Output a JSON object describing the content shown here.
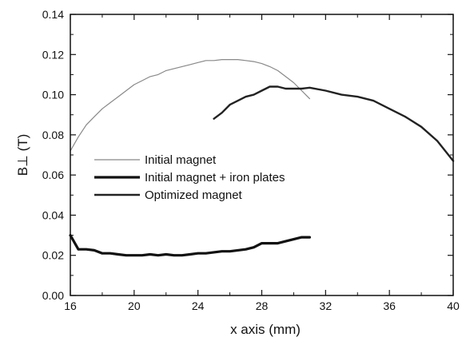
{
  "chart_data": {
    "type": "line",
    "xlabel": "x axis (mm)",
    "ylabel": "B⊥ (T)",
    "xlim": [
      16,
      40
    ],
    "ylim": [
      0.0,
      0.14
    ],
    "x_ticks": [
      16,
      20,
      24,
      28,
      32,
      36,
      40
    ],
    "y_ticks": [
      0.0,
      0.02,
      0.04,
      0.06,
      0.08,
      0.1,
      0.12,
      0.14
    ],
    "y_tick_labels": [
      "0.00",
      "0.02",
      "0.04",
      "0.06",
      "0.08",
      "0.10",
      "0.12",
      "0.14"
    ],
    "grid": false,
    "legend_position": "center-left",
    "series": [
      {
        "name": "Initial magnet",
        "color": "#888888",
        "style": "thin",
        "x": [
          16.0,
          16.5,
          17.0,
          17.5,
          18.0,
          18.5,
          19.0,
          19.5,
          20.0,
          20.5,
          21.0,
          21.5,
          22.0,
          22.5,
          23.0,
          23.5,
          24.0,
          24.5,
          25.0,
          25.5,
          26.0,
          26.5,
          27.0,
          27.5,
          28.0,
          28.5,
          29.0,
          29.5,
          30.0,
          30.5,
          31.0
        ],
        "y": [
          0.072,
          0.079,
          0.085,
          0.089,
          0.093,
          0.096,
          0.099,
          0.102,
          0.105,
          0.107,
          0.109,
          0.11,
          0.112,
          0.113,
          0.114,
          0.115,
          0.116,
          0.117,
          0.117,
          0.1175,
          0.1175,
          0.1175,
          0.117,
          0.1165,
          0.1155,
          0.114,
          0.112,
          0.109,
          0.106,
          0.102,
          0.098
        ]
      },
      {
        "name": "Initial magnet + iron plates",
        "color": "#111111",
        "style": "thick",
        "x": [
          16.0,
          16.5,
          17.0,
          17.5,
          18.0,
          18.5,
          19.0,
          19.5,
          20.0,
          20.5,
          21.0,
          21.5,
          22.0,
          22.5,
          23.0,
          23.5,
          24.0,
          24.5,
          25.0,
          25.5,
          26.0,
          26.5,
          27.0,
          27.5,
          28.0,
          28.5,
          29.0,
          29.5,
          30.0,
          30.5,
          31.0
        ],
        "y": [
          0.03,
          0.023,
          0.023,
          0.0225,
          0.021,
          0.021,
          0.0205,
          0.02,
          0.02,
          0.02,
          0.0205,
          0.02,
          0.0205,
          0.02,
          0.02,
          0.0205,
          0.021,
          0.021,
          0.0215,
          0.022,
          0.022,
          0.0225,
          0.023,
          0.024,
          0.026,
          0.026,
          0.026,
          0.027,
          0.028,
          0.029,
          0.029
        ]
      },
      {
        "name": "Optimized magnet",
        "color": "#222222",
        "style": "medium",
        "x": [
          25.0,
          25.5,
          26.0,
          26.5,
          27.0,
          27.5,
          28.0,
          28.5,
          29.0,
          29.5,
          30.0,
          30.5,
          31.0,
          32.0,
          33.0,
          34.0,
          35.0,
          36.0,
          37.0,
          38.0,
          39.0,
          40.0
        ],
        "y": [
          0.088,
          0.091,
          0.095,
          0.097,
          0.099,
          0.1,
          0.102,
          0.104,
          0.104,
          0.103,
          0.103,
          0.103,
          0.1035,
          0.102,
          0.1,
          0.099,
          0.097,
          0.093,
          0.089,
          0.084,
          0.077,
          0.067
        ]
      }
    ]
  }
}
